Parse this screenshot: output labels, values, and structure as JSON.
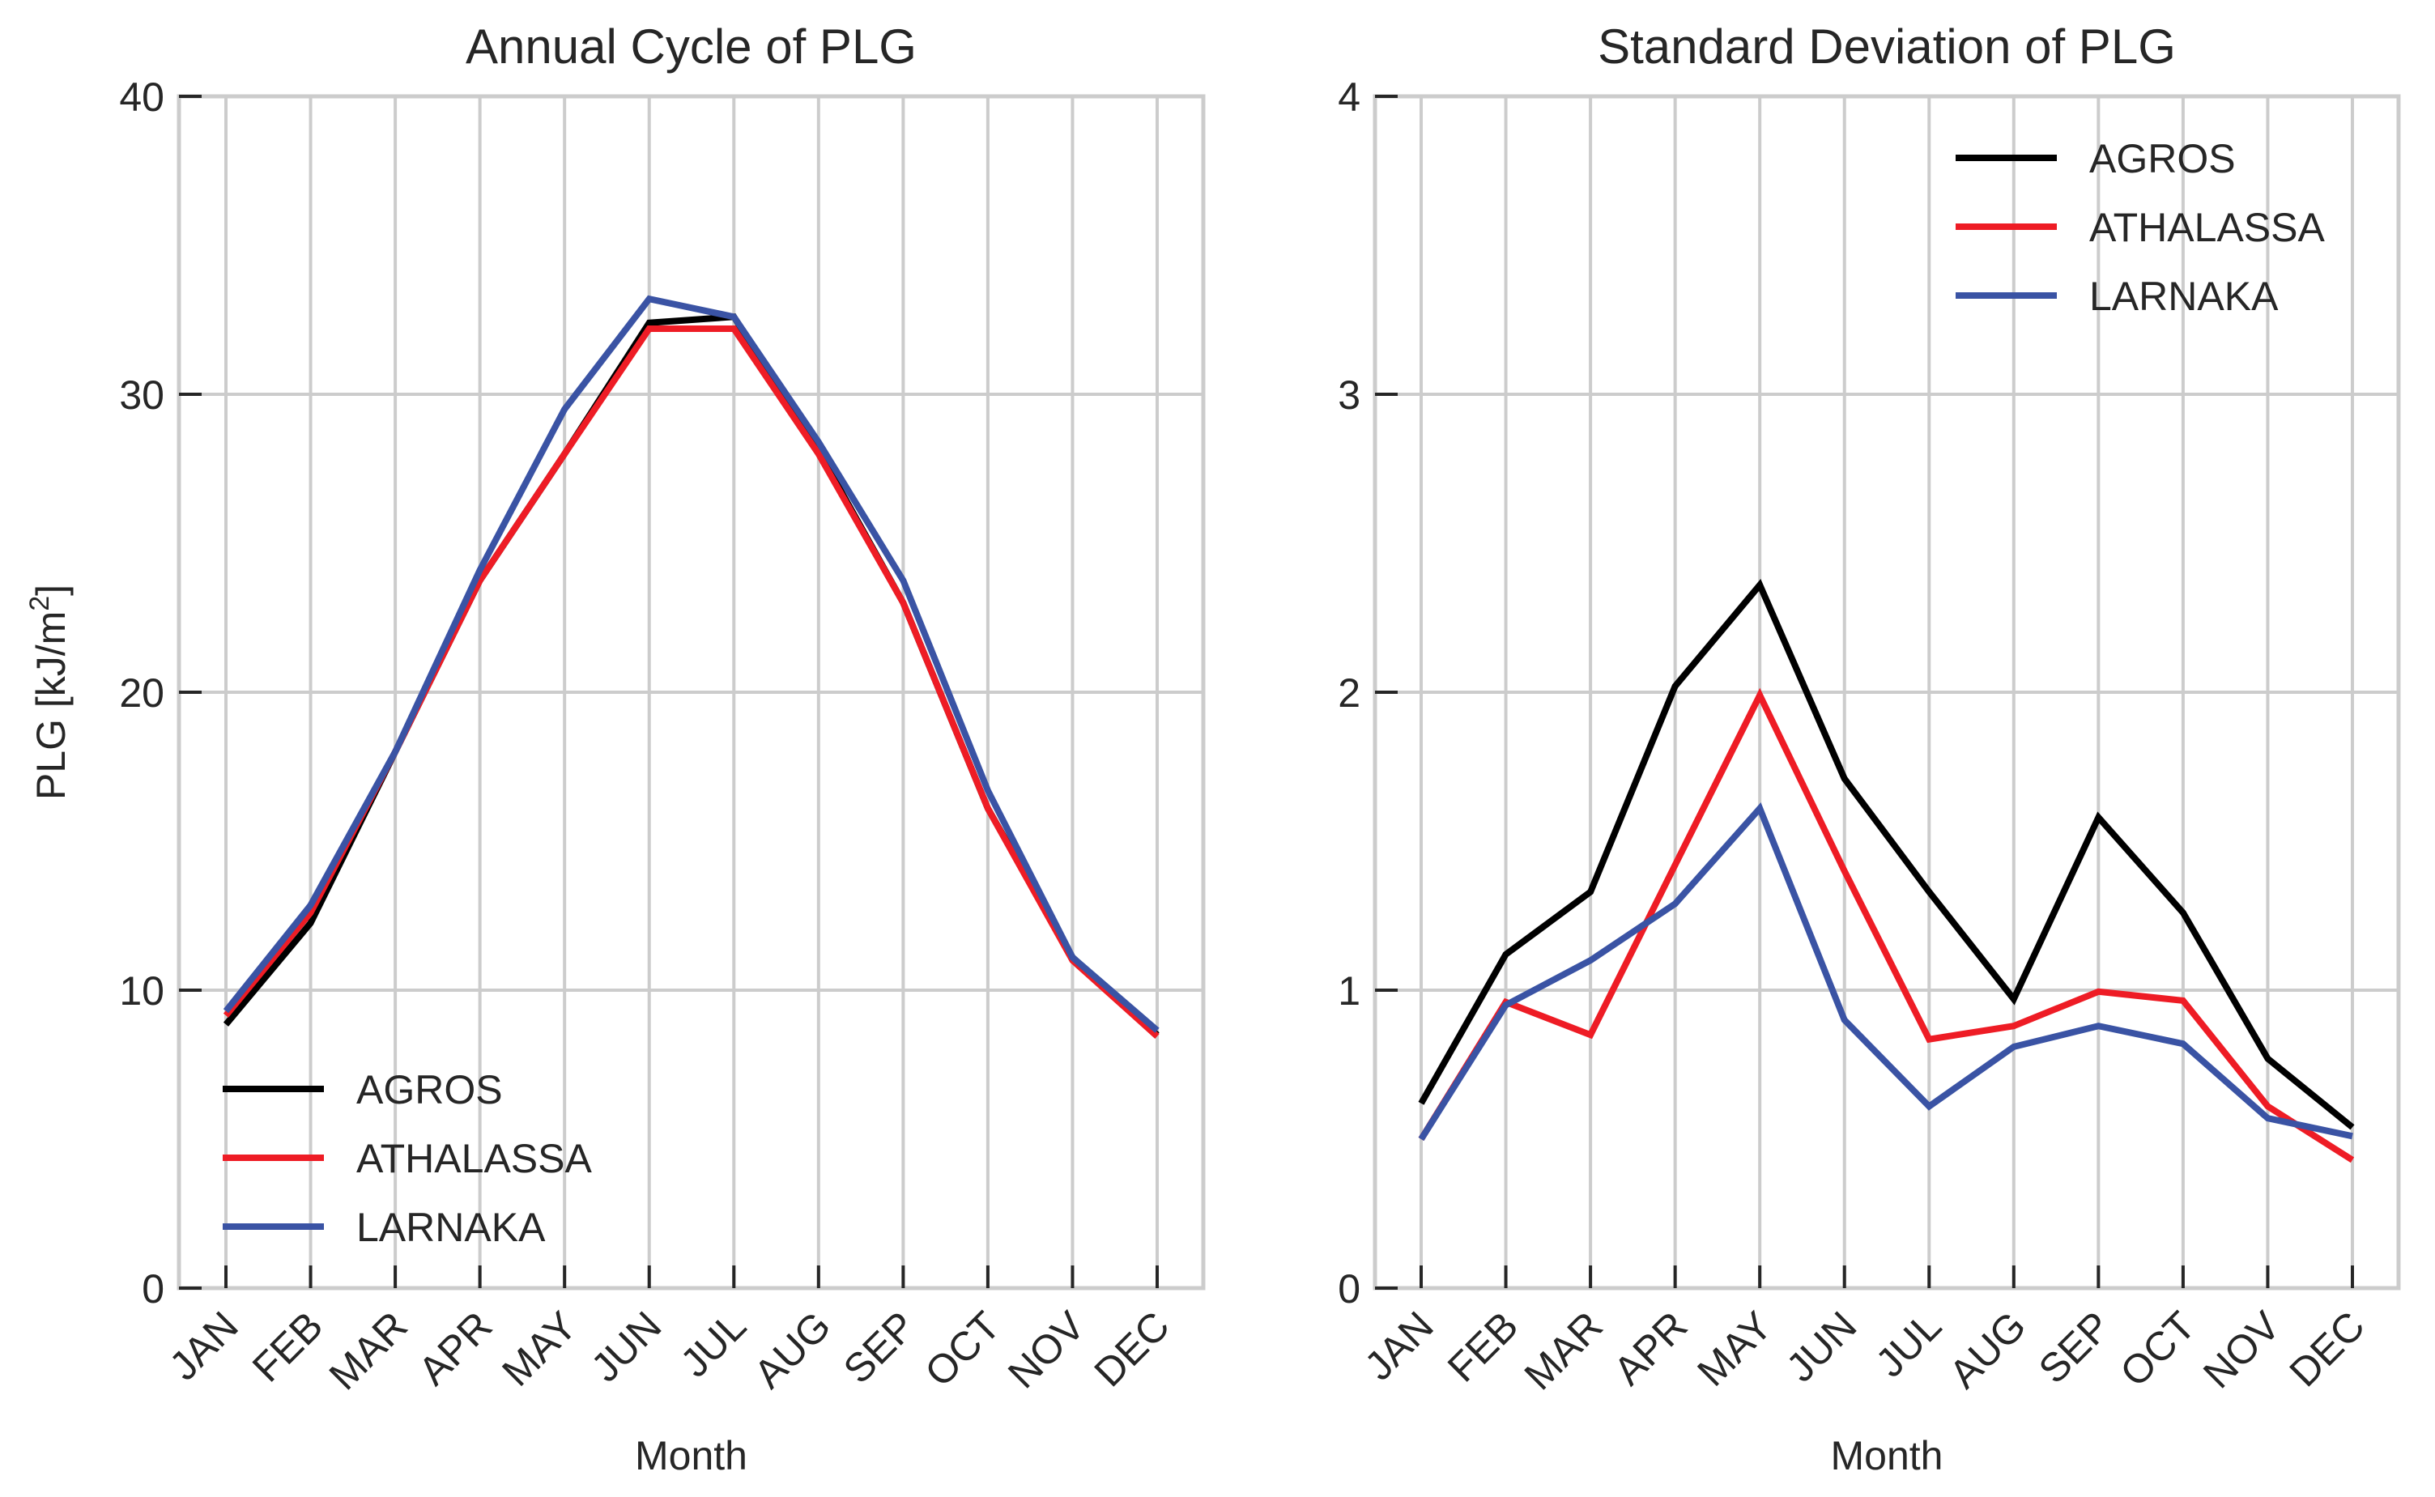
{
  "figure": {
    "panels": 2
  },
  "chart_data": [
    {
      "type": "line",
      "title": "Annual Cycle of PLG",
      "xlabel": "Month",
      "ylabel": "PLG [kJ/m²]",
      "ylabel_base": "PLG [kJ/m",
      "ylabel_sup": "2",
      "ylabel_end": "]",
      "ylim": [
        0,
        40
      ],
      "yticks": [
        0,
        10,
        20,
        30,
        40
      ],
      "ytick_labels": [
        "0",
        "10",
        "20",
        "30",
        "40"
      ],
      "grid": true,
      "legend_position": "lower-left",
      "categories": [
        "JAN",
        "FEB",
        "MAR",
        "APR",
        "MAY",
        "JUN",
        "JUL",
        "AUG",
        "SEP",
        "OCT",
        "NOV",
        "DEC"
      ],
      "series": [
        {
          "name": "AGROS",
          "color": "#000000",
          "values": [
            8.85,
            12.25,
            18.0,
            23.75,
            28.0,
            32.4,
            32.6,
            28.1,
            23.0,
            16.1,
            11.1,
            8.5
          ]
        },
        {
          "name": "ATHALASSA",
          "color": "#ee1c25",
          "values": [
            9.15,
            12.6,
            18.0,
            23.75,
            28.0,
            32.2,
            32.2,
            28.0,
            23.0,
            16.1,
            11.0,
            8.45
          ]
        },
        {
          "name": "LARNAKA",
          "color": "#3a53a4",
          "values": [
            9.3,
            12.85,
            18.0,
            24.1,
            29.5,
            33.2,
            32.6,
            28.4,
            23.75,
            16.7,
            11.1,
            8.65
          ]
        }
      ]
    },
    {
      "type": "line",
      "title": "Standard Deviation of PLG",
      "xlabel": "Month",
      "ylabel": "",
      "ylim": [
        0,
        4
      ],
      "yticks": [
        0,
        1,
        2,
        3,
        4
      ],
      "ytick_labels": [
        "0",
        "1",
        "2",
        "3",
        "4"
      ],
      "grid": true,
      "legend_position": "upper-right",
      "categories": [
        "JAN",
        "FEB",
        "MAR",
        "APR",
        "MAY",
        "JUN",
        "JUL",
        "AUG",
        "SEP",
        "OCT",
        "NOV",
        "DEC"
      ],
      "series": [
        {
          "name": "AGROS",
          "color": "#000000",
          "values": [
            0.62,
            1.12,
            1.33,
            2.02,
            2.36,
            1.71,
            1.33,
            0.97,
            1.58,
            1.26,
            0.77,
            0.54
          ]
        },
        {
          "name": "ATHALASSA",
          "color": "#ee1c25",
          "values": [
            0.5,
            0.96,
            0.85,
            1.42,
            1.99,
            1.4,
            0.835,
            0.88,
            0.995,
            0.965,
            0.61,
            0.43
          ]
        },
        {
          "name": "LARNAKA",
          "color": "#3a53a4",
          "values": [
            0.5,
            0.95,
            1.1,
            1.29,
            1.61,
            0.9,
            0.61,
            0.81,
            0.88,
            0.82,
            0.57,
            0.51
          ]
        }
      ]
    }
  ]
}
